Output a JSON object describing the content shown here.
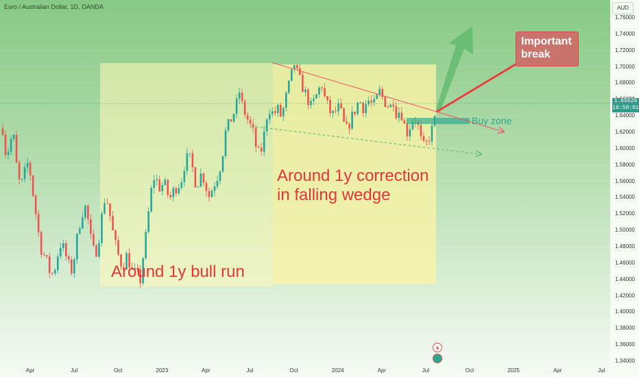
{
  "header": {
    "title": "Euro / Australian Dollar, 1D, OANDA",
    "currency": "AUD"
  },
  "price_tag": {
    "price": "1.65526",
    "countdown": "16:58:01"
  },
  "annotations": {
    "bull_run": "Around 1y bull run",
    "correction_line1": "Around 1y correction",
    "correction_line2": "in falling wedge",
    "buy_zone": "Buy zone",
    "important_line1": "Important",
    "important_line2": "break"
  },
  "colors": {
    "background_top": "#88c985",
    "background_bottom": "#f3faf3",
    "candle_up": "#26a69a",
    "candle_down": "#ef5350",
    "wedge_upper": "#f05a6a",
    "wedge_lower": "#5fb874",
    "annotation_text": "#e3363c",
    "box_fill": "#fffbb3",
    "price_tag": "#2f9c8a"
  },
  "chart_data": {
    "type": "candlestick",
    "symbol": "EURAUD",
    "timeframe": "1D",
    "y_axis": {
      "range": [
        1.33,
        1.785
      ],
      "ticks": [
        "1.76000",
        "1.74000",
        "1.72000",
        "1.70000",
        "1.68000",
        "1.66000",
        "1.64000",
        "1.62000",
        "1.60000",
        "1.58000",
        "1.56000",
        "1.54000",
        "1.52000",
        "1.50000",
        "1.48000",
        "1.46000",
        "1.44000",
        "1.42000",
        "1.40000",
        "1.38000",
        "1.36000",
        "1.34000"
      ]
    },
    "x_axis": {
      "ticks": [
        "Apr",
        "Jul",
        "Oct",
        "2023",
        "Apr",
        "Jul",
        "Oct",
        "2024",
        "Apr",
        "Jul",
        "Oct",
        "2025",
        "Apr",
        "Jul"
      ]
    },
    "current_price": 1.65526,
    "price_path": [
      [
        1.625,
        1.59,
        1.605,
        1.62,
        1.58,
        1.555,
        1.56,
        1.585,
        1.57,
        1.54,
        1.51,
        1.48,
        1.47,
        1.46,
        1.445,
        1.45,
        1.47
      ],
      [
        1.485,
        1.475,
        1.46,
        1.45,
        1.47,
        1.5,
        1.52,
        1.53,
        1.51,
        1.48,
        1.47,
        1.49,
        1.52,
        1.545,
        1.525,
        1.5
      ],
      [
        1.48,
        1.465,
        1.455,
        1.47,
        1.46,
        1.445,
        1.45,
        1.435,
        1.47,
        1.5,
        1.54,
        1.565,
        1.56,
        1.55,
        1.56
      ],
      [
        1.545,
        1.54,
        1.55,
        1.555,
        1.56,
        1.58,
        1.59,
        1.585,
        1.56,
        1.56,
        1.57,
        1.56,
        1.54,
        1.55,
        1.56,
        1.57,
        1.59
      ],
      [
        1.62,
        1.63,
        1.64,
        1.65,
        1.67,
        1.65,
        1.64,
        1.63,
        1.62,
        1.6,
        1.59,
        1.61,
        1.64,
        1.65,
        1.64,
        1.65
      ],
      [
        1.64,
        1.65,
        1.67,
        1.685,
        1.705,
        1.69,
        1.68,
        1.67,
        1.66,
        1.65,
        1.66,
        1.67,
        1.68,
        1.66,
        1.65,
        1.64,
        1.645,
        1.65
      ],
      [
        1.64,
        1.62,
        1.63,
        1.64,
        1.65,
        1.66,
        1.65,
        1.655,
        1.66,
        1.65,
        1.66,
        1.67,
        1.66,
        1.655,
        1.65,
        1.66,
        1.64,
        1.65,
        1.63
      ],
      [
        1.62,
        1.63,
        1.64,
        1.63,
        1.61,
        1.6,
        1.61,
        1.62,
        1.635
      ]
    ],
    "levels": {
      "buy_zone": [
        1.63,
        1.637
      ],
      "bull_run_box": {
        "price_top": 1.706,
        "price_bottom": 1.433
      },
      "correction_box": {
        "price_top": 1.706,
        "price_bottom": 1.435
      }
    }
  }
}
